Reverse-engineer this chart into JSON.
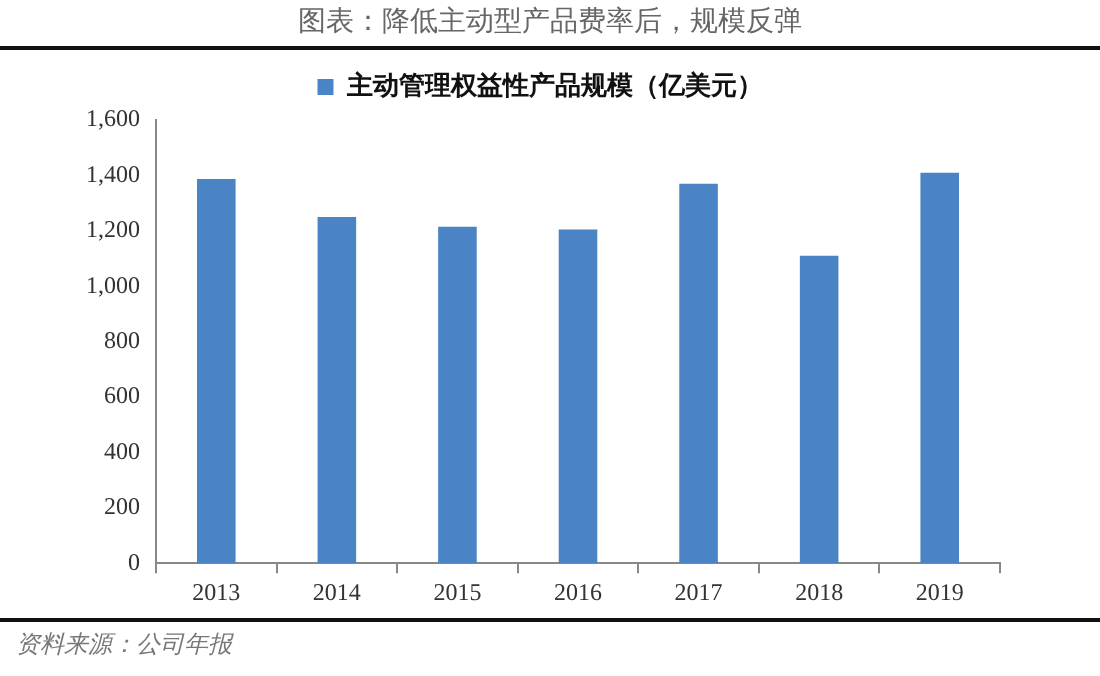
{
  "chart_data": {
    "type": "bar",
    "title": "图表：降低主动型产品费率后，规模反弹",
    "categories": [
      "2013",
      "2014",
      "2015",
      "2016",
      "2017",
      "2018",
      "2019"
    ],
    "series": [
      {
        "name": "主动管理权益性产品规模（亿美元）",
        "color": "#4a84c4",
        "values": [
          1387,
          1250,
          1215,
          1205,
          1370,
          1110,
          1410
        ]
      }
    ],
    "ylim": [
      0,
      1600
    ],
    "yticks": [
      0,
      200,
      400,
      600,
      800,
      {
        "value": 1000,
        "label": "1,000"
      },
      {
        "value": 1200,
        "label": "1,200"
      },
      {
        "value": 1400,
        "label": "1,400"
      },
      {
        "value": 1600,
        "label": "1,600"
      }
    ],
    "grid": false,
    "legend": "top",
    "annotations": [
      "资料来源：公司年报"
    ]
  }
}
